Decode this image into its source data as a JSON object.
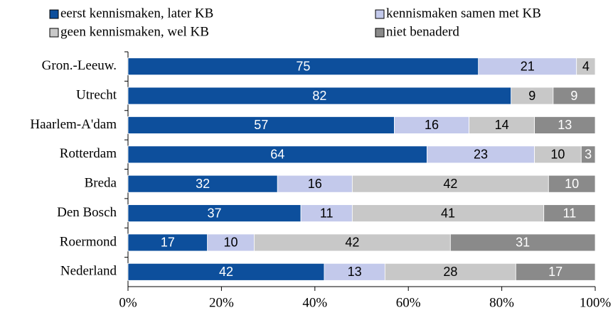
{
  "chart_data": {
    "type": "stacked_bar_horizontal",
    "categories": [
      "Gron.-Leeuw.",
      "Utrecht",
      "Haarlem-A'dam",
      "Rotterdam",
      "Breda",
      "Den Bosch",
      "Roermond",
      "Nederland"
    ],
    "series": [
      {
        "name": "eerst kennismaken, later KB",
        "color": "#0d4f9c",
        "label_color": "#ffffff",
        "values": [
          75,
          82,
          57,
          64,
          32,
          37,
          17,
          42
        ]
      },
      {
        "name": "kennismaken samen met KB",
        "color": "#c3c9eb",
        "label_color": "#000000",
        "values": [
          21,
          null,
          16,
          23,
          16,
          11,
          10,
          13
        ]
      },
      {
        "name": "geen kennismaken, wel KB",
        "color": "#c8c8c8",
        "label_color": "#000000",
        "values": [
          4,
          9,
          14,
          10,
          42,
          41,
          42,
          28
        ]
      },
      {
        "name": "niet benaderd",
        "color": "#8a8a8a",
        "label_color": "#ffffff",
        "values": [
          null,
          9,
          13,
          3,
          10,
          11,
          31,
          17
        ]
      }
    ],
    "xlim": [
      0,
      100
    ],
    "xticks": [
      {
        "value": 0,
        "label": "0%"
      },
      {
        "value": 20,
        "label": "20%"
      },
      {
        "value": 40,
        "label": "40%"
      },
      {
        "value": 60,
        "label": "60%"
      },
      {
        "value": 80,
        "label": "80%"
      },
      {
        "value": 100,
        "label": "100%"
      }
    ],
    "legend": "top"
  }
}
